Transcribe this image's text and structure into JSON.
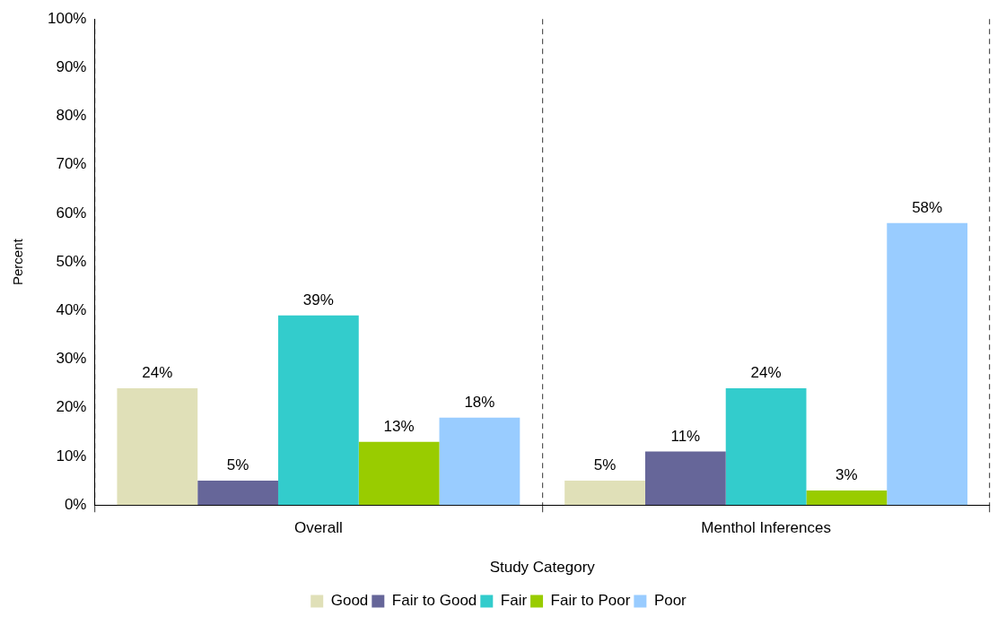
{
  "chart_data": {
    "type": "bar",
    "xlabel": "Study Category",
    "ylabel": "Percent",
    "categories": [
      "Overall",
      "Menthol Inferences"
    ],
    "series": [
      {
        "name": "Good",
        "color": "#e0e0b8",
        "values": [
          24,
          5
        ],
        "value_labels": [
          "24%",
          "5%"
        ]
      },
      {
        "name": "Fair to Good",
        "color": "#666699",
        "values": [
          5,
          11
        ],
        "value_labels": [
          "5%",
          "11%"
        ]
      },
      {
        "name": "Fair",
        "color": "#33cccc",
        "values": [
          39,
          24
        ],
        "value_labels": [
          "39%",
          "24%"
        ]
      },
      {
        "name": "Fair to Poor",
        "color": "#99cc00",
        "values": [
          13,
          3
        ],
        "value_labels": [
          "13%",
          "3%"
        ]
      },
      {
        "name": "Poor",
        "color": "#99ccff",
        "values": [
          18,
          58
        ],
        "value_labels": [
          "18%",
          "58%"
        ]
      }
    ],
    "ylim": [
      0,
      100
    ],
    "yticks": [
      {
        "value": 0,
        "label": "0%"
      },
      {
        "value": 10,
        "label": "10%"
      },
      {
        "value": 20,
        "label": "20%"
      },
      {
        "value": 30,
        "label": "30%"
      },
      {
        "value": 40,
        "label": "40%"
      },
      {
        "value": 50,
        "label": "50%"
      },
      {
        "value": 60,
        "label": "60%"
      },
      {
        "value": 70,
        "label": "70%"
      },
      {
        "value": 80,
        "label": "80%"
      },
      {
        "value": 90,
        "label": "90%"
      },
      {
        "value": 100,
        "label": "100%"
      }
    ],
    "grid": "x",
    "legend": "bottom"
  }
}
